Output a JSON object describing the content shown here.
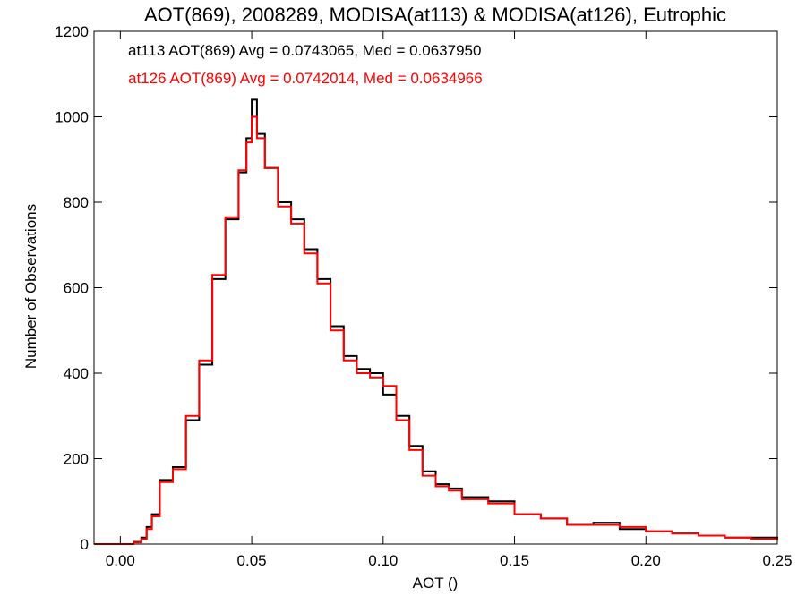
{
  "chart_data": {
    "type": "line",
    "title": "AOT(869), 2008289, MODISA(at113) & MODISA(at126), Eutrophic",
    "xlabel": "AOT ()",
    "ylabel": "Number of Observations",
    "xlim": [
      -0.01,
      0.25
    ],
    "ylim": [
      0,
      1200
    ],
    "xticks": [
      0.0,
      0.05,
      0.1,
      0.15,
      0.2,
      0.25
    ],
    "xtick_labels": [
      "0.00",
      "0.05",
      "0.10",
      "0.15",
      "0.20",
      "0.25"
    ],
    "yticks": [
      0,
      200,
      400,
      600,
      800,
      1000,
      1200
    ],
    "ytick_labels": [
      "0",
      "200",
      "400",
      "600",
      "800",
      "1000",
      "1200"
    ],
    "grid": false,
    "legend": "top-left",
    "annotations": [
      {
        "text": "at113 AOT(869) Avg = 0.0743065, Med = 0.0637950",
        "color": "#000000"
      },
      {
        "text": "at126 AOT(869) Avg = 0.0742014, Med = 0.0634966",
        "color": "#ff0000"
      }
    ],
    "series": [
      {
        "color": "#000000",
        "x": [
          -0.01,
          0.0,
          0.005,
          0.008,
          0.01,
          0.012,
          0.015,
          0.02,
          0.025,
          0.03,
          0.035,
          0.04,
          0.045,
          0.048,
          0.05,
          0.052,
          0.055,
          0.06,
          0.065,
          0.07,
          0.075,
          0.08,
          0.085,
          0.09,
          0.095,
          0.1,
          0.105,
          0.11,
          0.115,
          0.12,
          0.125,
          0.13,
          0.14,
          0.15,
          0.16,
          0.17,
          0.18,
          0.19,
          0.2,
          0.21,
          0.22,
          0.23,
          0.24,
          0.25
        ],
        "y": [
          0,
          0,
          5,
          15,
          40,
          70,
          150,
          180,
          290,
          420,
          620,
          760,
          870,
          950,
          1040,
          960,
          880,
          800,
          760,
          690,
          620,
          510,
          440,
          410,
          400,
          350,
          300,
          230,
          170,
          140,
          130,
          110,
          100,
          70,
          60,
          45,
          50,
          35,
          30,
          25,
          20,
          15,
          15,
          10
        ]
      },
      {
        "color": "#ff0000",
        "x": [
          -0.01,
          0.0,
          0.005,
          0.008,
          0.01,
          0.012,
          0.015,
          0.02,
          0.025,
          0.03,
          0.035,
          0.04,
          0.045,
          0.048,
          0.05,
          0.052,
          0.055,
          0.06,
          0.065,
          0.07,
          0.075,
          0.08,
          0.085,
          0.09,
          0.095,
          0.1,
          0.105,
          0.11,
          0.115,
          0.12,
          0.125,
          0.13,
          0.14,
          0.15,
          0.16,
          0.17,
          0.18,
          0.19,
          0.2,
          0.21,
          0.22,
          0.23,
          0.24,
          0.25
        ],
        "y": [
          0,
          0,
          4,
          12,
          35,
          65,
          145,
          175,
          300,
          430,
          630,
          765,
          875,
          940,
          1000,
          950,
          880,
          790,
          750,
          680,
          610,
          500,
          430,
          400,
          390,
          370,
          290,
          220,
          160,
          135,
          125,
          105,
          95,
          70,
          60,
          45,
          45,
          40,
          30,
          25,
          20,
          15,
          12,
          10
        ]
      }
    ]
  }
}
